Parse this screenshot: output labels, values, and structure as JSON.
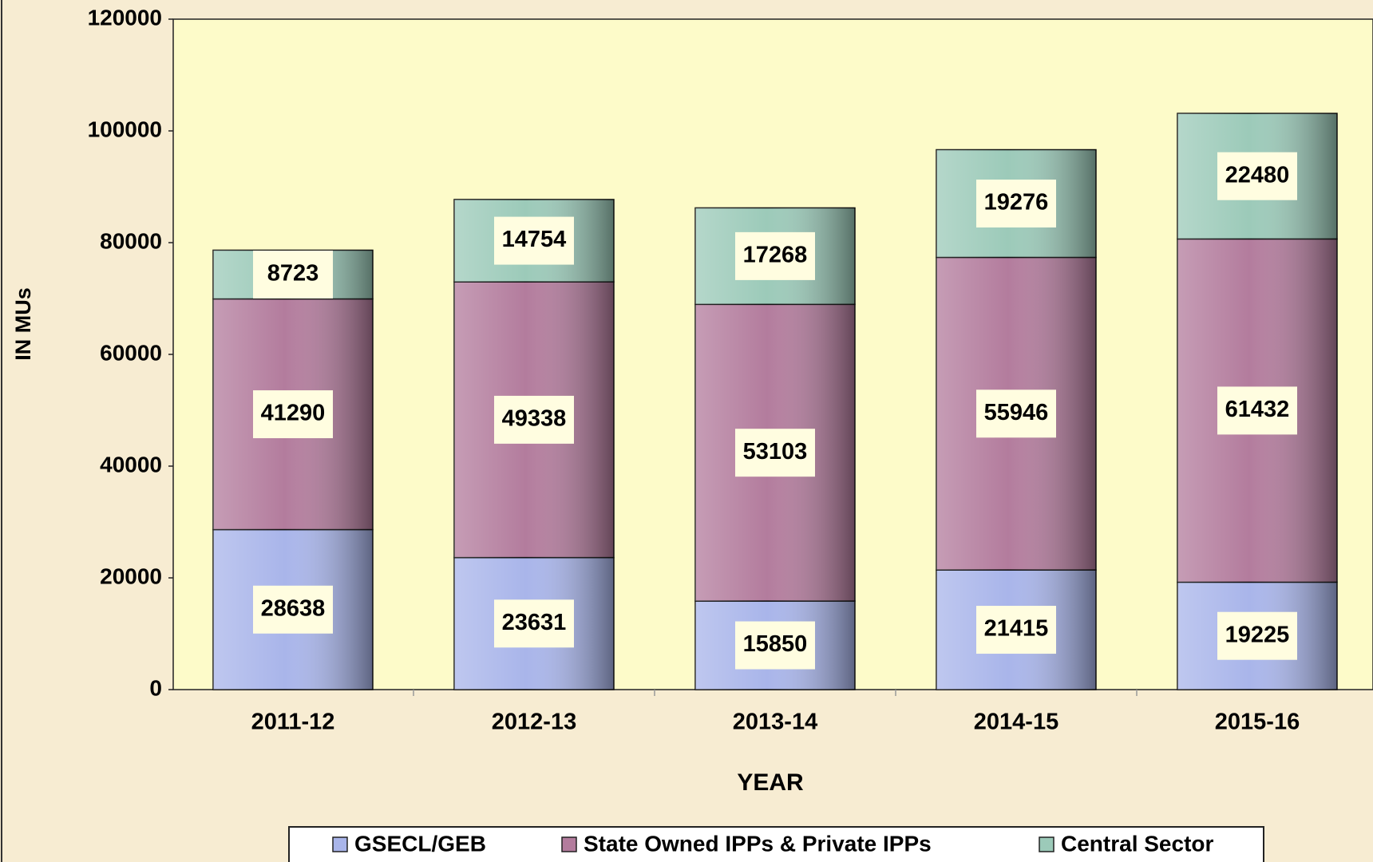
{
  "chart_data": {
    "type": "stacked_bar",
    "x_label": "YEAR",
    "y_label": "IN MUs",
    "categories": [
      "2011-12",
      "2012-13",
      "2013-14",
      "2014-15",
      "2015-16"
    ],
    "series": [
      {
        "name": "GSECL/GEB",
        "color": "#a9b5ea",
        "values": [
          28638,
          23631,
          15850,
          21415,
          19225
        ]
      },
      {
        "name": "State Owned IPPs & Private IPPs",
        "color": "#b37c9d",
        "values": [
          41290,
          49338,
          53103,
          55946,
          61432
        ]
      },
      {
        "name": "Central Sector",
        "color": "#9ccab9",
        "values": [
          8723,
          14754,
          17268,
          19276,
          22480
        ]
      }
    ],
    "ylim": [
      0,
      120000
    ],
    "yticks": [
      0,
      20000,
      40000,
      60000,
      80000,
      100000,
      120000
    ],
    "legend": "bottom"
  }
}
